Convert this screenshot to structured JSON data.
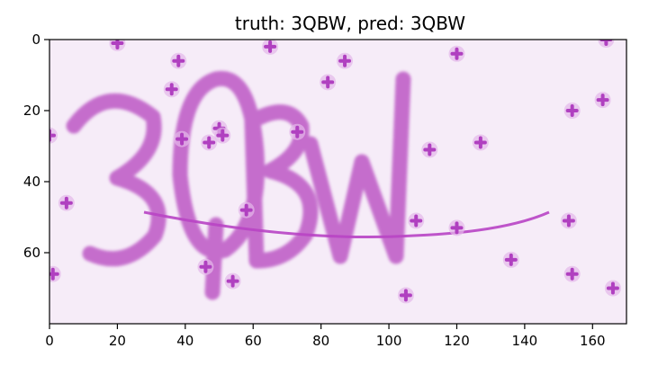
{
  "title": "truth: 3QBW, pred: 3QBW",
  "image": {
    "kind": "captcha",
    "text": "3QBW",
    "background_color": "#f6ecf8",
    "glyph_color": "#c060c8",
    "noise_color": "#b040c0"
  },
  "axes": {
    "xlim": [
      0,
      170
    ],
    "ylim": [
      80,
      0
    ],
    "x_ticks": [
      0,
      20,
      40,
      60,
      80,
      100,
      120,
      140,
      160
    ],
    "y_ticks": [
      0,
      20,
      40,
      60
    ],
    "x_tick_labels": [
      "0",
      "20",
      "40",
      "60",
      "80",
      "100",
      "120",
      "140",
      "160"
    ],
    "y_tick_labels": [
      "0",
      "20",
      "40",
      "60"
    ]
  }
}
